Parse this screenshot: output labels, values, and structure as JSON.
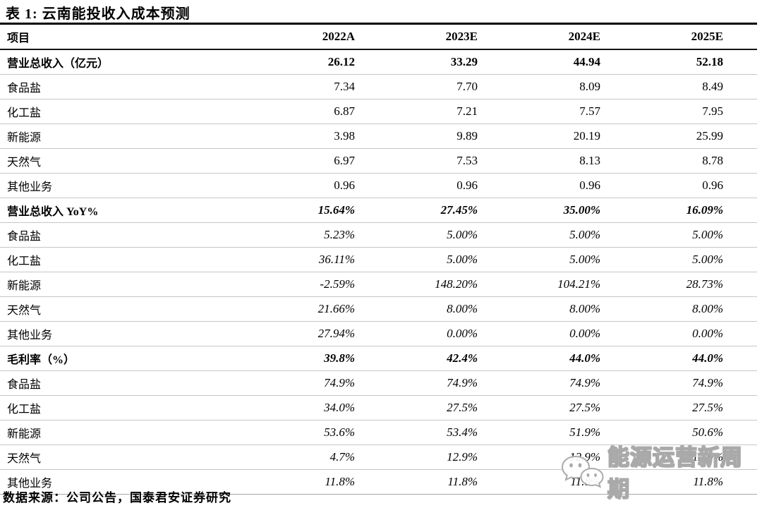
{
  "title": "表 1: 云南能投收入成本预测",
  "table": {
    "columns": [
      "项目",
      "2022A",
      "2023E",
      "2024E",
      "2025E"
    ],
    "rows": [
      {
        "label": "营业总收入（亿元）",
        "label_style": "b",
        "value_style": "b",
        "values": [
          "26.12",
          "33.29",
          "44.94",
          "52.18"
        ]
      },
      {
        "label": "食品盐",
        "label_style": "",
        "value_style": "",
        "values": [
          "7.34",
          "7.70",
          "8.09",
          "8.49"
        ]
      },
      {
        "label": "化工盐",
        "label_style": "",
        "value_style": "",
        "values": [
          "6.87",
          "7.21",
          "7.57",
          "7.95"
        ]
      },
      {
        "label": "新能源",
        "label_style": "",
        "value_style": "",
        "values": [
          "3.98",
          "9.89",
          "20.19",
          "25.99"
        ]
      },
      {
        "label": "天然气",
        "label_style": "",
        "value_style": "",
        "values": [
          "6.97",
          "7.53",
          "8.13",
          "8.78"
        ]
      },
      {
        "label": "其他业务",
        "label_style": "",
        "value_style": "",
        "values": [
          "0.96",
          "0.96",
          "0.96",
          "0.96"
        ]
      },
      {
        "label": "营业总收入 YoY%",
        "label_style": "b",
        "value_style": "bi",
        "values": [
          "15.64%",
          "27.45%",
          "35.00%",
          "16.09%"
        ]
      },
      {
        "label": "食品盐",
        "label_style": "",
        "value_style": "i",
        "values": [
          "5.23%",
          "5.00%",
          "5.00%",
          "5.00%"
        ]
      },
      {
        "label": "化工盐",
        "label_style": "",
        "value_style": "i",
        "values": [
          "36.11%",
          "5.00%",
          "5.00%",
          "5.00%"
        ]
      },
      {
        "label": "新能源",
        "label_style": "",
        "value_style": "i",
        "values": [
          "-2.59%",
          "148.20%",
          "104.21%",
          "28.73%"
        ]
      },
      {
        "label": "天然气",
        "label_style": "",
        "value_style": "i",
        "values": [
          "21.66%",
          "8.00%",
          "8.00%",
          "8.00%"
        ]
      },
      {
        "label": "其他业务",
        "label_style": "",
        "value_style": "i",
        "values": [
          "27.94%",
          "0.00%",
          "0.00%",
          "0.00%"
        ]
      },
      {
        "label": "毛利率（%）",
        "label_style": "b",
        "value_style": "bi",
        "values": [
          "39.8%",
          "42.4%",
          "44.0%",
          "44.0%"
        ]
      },
      {
        "label": "食品盐",
        "label_style": "",
        "value_style": "i",
        "values": [
          "74.9%",
          "74.9%",
          "74.9%",
          "74.9%"
        ]
      },
      {
        "label": "化工盐",
        "label_style": "",
        "value_style": "i",
        "values": [
          "34.0%",
          "27.5%",
          "27.5%",
          "27.5%"
        ]
      },
      {
        "label": "新能源",
        "label_style": "",
        "value_style": "i",
        "values": [
          "53.6%",
          "53.4%",
          "51.9%",
          "50.6%"
        ]
      },
      {
        "label": "天然气",
        "label_style": "",
        "value_style": "i",
        "values": [
          "4.7%",
          "12.9%",
          "12.9%",
          "12.9%"
        ]
      },
      {
        "label": "其他业务",
        "label_style": "",
        "value_style": "i",
        "values": [
          "11.8%",
          "11.8%",
          "11.8%",
          "11.8%"
        ]
      }
    ]
  },
  "footer": "数据来源：公司公告，国泰君安证券研究",
  "watermark": {
    "text": "能源运营新周期",
    "icon": "wechat-bubbles-icon",
    "color": "#a9a9a9"
  },
  "colors": {
    "text": "#000000",
    "heavy_rule": "#000000",
    "light_rule": "#c6c6c6",
    "watermark_gray": "#a9a9a9"
  }
}
